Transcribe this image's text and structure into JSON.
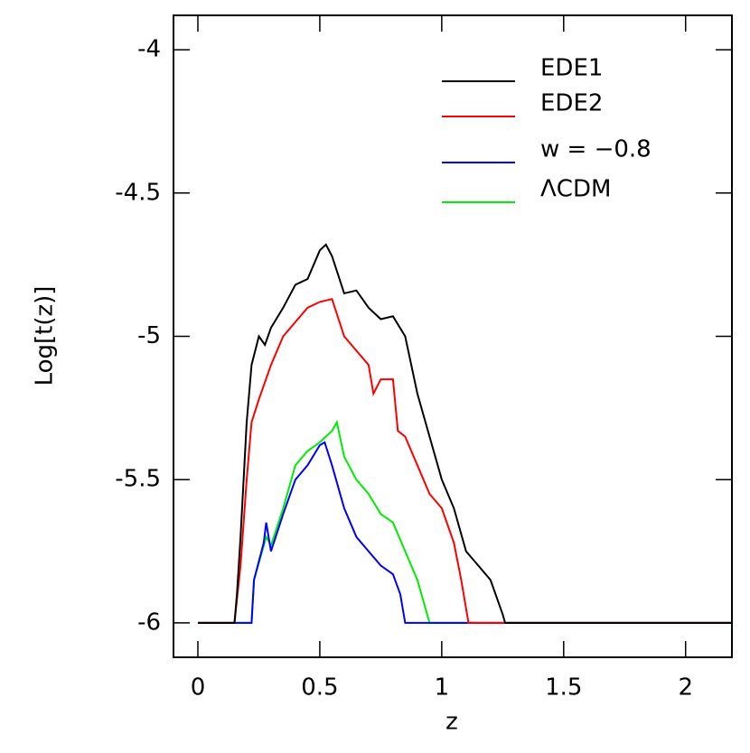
{
  "chart_data": {
    "type": "line",
    "xlabel": "z",
    "ylabel": "Log[t(z)]",
    "xlim": [
      -0.1,
      2.19
    ],
    "ylim": [
      -6.12,
      -3.88
    ],
    "xticks": [
      0,
      0.5,
      1,
      1.5,
      2
    ],
    "yticks": [
      -6,
      -5.5,
      -5,
      -4.5,
      -4
    ],
    "legend": "upper right",
    "series": [
      {
        "name": "EDE1",
        "color": "#000000",
        "x": [
          0,
          0.15,
          0.16,
          0.175,
          0.2,
          0.22,
          0.25,
          0.275,
          0.3,
          0.35,
          0.4,
          0.45,
          0.5,
          0.525,
          0.55,
          0.6,
          0.65,
          0.7,
          0.75,
          0.8,
          0.85,
          0.9,
          0.95,
          1.0,
          1.05,
          1.1,
          1.15,
          1.2,
          1.25,
          1.26,
          2.19
        ],
        "values": [
          -6,
          -6,
          -5.9,
          -5.7,
          -5.3,
          -5.1,
          -5.0,
          -5.03,
          -4.97,
          -4.9,
          -4.82,
          -4.8,
          -4.7,
          -4.68,
          -4.72,
          -4.85,
          -4.84,
          -4.9,
          -4.94,
          -4.93,
          -5.0,
          -5.2,
          -5.35,
          -5.5,
          -5.6,
          -5.75,
          -5.8,
          -5.85,
          -5.97,
          -6,
          -6
        ]
      },
      {
        "name": "EDE2",
        "color": "#ff0000",
        "x": [
          0,
          0.15,
          0.175,
          0.2,
          0.22,
          0.25,
          0.3,
          0.35,
          0.4,
          0.45,
          0.5,
          0.55,
          0.6,
          0.65,
          0.7,
          0.72,
          0.75,
          0.8,
          0.82,
          0.85,
          0.9,
          0.95,
          1.0,
          1.05,
          1.08,
          1.11,
          2.19
        ],
        "values": [
          -6,
          -6,
          -5.8,
          -5.5,
          -5.3,
          -5.22,
          -5.1,
          -5.0,
          -4.95,
          -4.9,
          -4.88,
          -4.87,
          -5.0,
          -5.05,
          -5.1,
          -5.2,
          -5.15,
          -5.15,
          -5.33,
          -5.35,
          -5.45,
          -5.55,
          -5.6,
          -5.72,
          -5.85,
          -6,
          -6
        ]
      },
      {
        "name": "w = −0.8",
        "color": "#0000ff",
        "x": [
          0,
          0.22,
          0.23,
          0.27,
          0.28,
          0.3,
          0.35,
          0.4,
          0.45,
          0.5,
          0.52,
          0.55,
          0.6,
          0.65,
          0.7,
          0.75,
          0.8,
          0.83,
          0.85,
          2.19
        ],
        "values": [
          -6,
          -6,
          -5.85,
          -5.72,
          -5.65,
          -5.75,
          -5.62,
          -5.5,
          -5.45,
          -5.38,
          -5.37,
          -5.45,
          -5.6,
          -5.7,
          -5.75,
          -5.8,
          -5.83,
          -5.9,
          -6,
          -6
        ]
      },
      {
        "name": "ΛCDM",
        "color": "#00ee00",
        "x": [
          0,
          0.22,
          0.23,
          0.28,
          0.3,
          0.35,
          0.4,
          0.45,
          0.5,
          0.55,
          0.57,
          0.6,
          0.65,
          0.7,
          0.75,
          0.8,
          0.85,
          0.9,
          0.95,
          2.19
        ],
        "values": [
          -6,
          -6,
          -5.85,
          -5.7,
          -5.73,
          -5.6,
          -5.45,
          -5.4,
          -5.37,
          -5.33,
          -5.3,
          -5.42,
          -5.5,
          -5.55,
          -5.62,
          -5.65,
          -5.75,
          -5.85,
          -6,
          -6
        ]
      }
    ]
  }
}
